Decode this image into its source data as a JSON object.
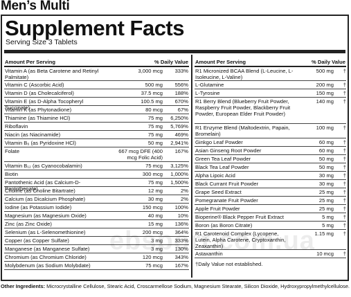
{
  "product_title": "Men’s Multi",
  "panel_title": "Supplement Facts",
  "serving_size": "Serving Size 3 Tablets",
  "header": {
    "amount": "Amount Per Serving",
    "dv": "% Daily Value"
  },
  "left_rows": [
    {
      "name": "Vitamin A (as Beta Carotene and Retinyl Palmitate)",
      "amount": "3,000 mcg",
      "dv": "333%",
      "h": 20
    },
    {
      "name": "Vitamin C (Ascorbic Acid)",
      "amount": "500 mg",
      "dv": "556%",
      "h": 12
    },
    {
      "name": "Vitamin D (as Cholecalciferol)",
      "amount": "37.5 mcg",
      "dv": "188%",
      "h": 12
    },
    {
      "name": "Vitamin E (as D-Alpha Tocopheryl Succinate)",
      "amount": "100.5 mg",
      "dv": "670%",
      "h": 12
    },
    {
      "name": "Vitamin K (as Phytonadione)",
      "amount": "80 mcg",
      "dv": "67%",
      "h": 12
    },
    {
      "name": "Thiamine (as Thiamine HCl)",
      "amount": "75 mg",
      "dv": "6,250%",
      "h": 12
    },
    {
      "name": "Riboflavin",
      "amount": "75 mg",
      "dv": "5,769%",
      "h": 12
    },
    {
      "name": "Niacin (as Niacinamide)",
      "amount": "75 mg",
      "dv": "469%",
      "h": 12
    },
    {
      "name": "Vitamin B₆ (as Pyridoxine HCl)",
      "amount": "50 mg",
      "dv": "2,941%",
      "h": 12
    },
    {
      "name": "Folate",
      "amount": "667 mcg DFE (400 mcg Folic Acid)",
      "dv": "167%",
      "h": 21
    },
    {
      "name": "Vitamin B₁₂ (as Cyanocobalamin)",
      "amount": "75 mcg",
      "dv": "3,125%",
      "h": 12
    },
    {
      "name": "Biotin",
      "amount": "300 mcg",
      "dv": "1,000%",
      "h": 12
    },
    {
      "name": "Pantothenic Acid (as Calcium-D-Pantothenate)",
      "amount": "75 mg",
      "dv": "1,500%",
      "h": 12
    },
    {
      "name": "Choline (as Choline Bitartrate)",
      "amount": "12 mg",
      "dv": "2%",
      "h": 12
    },
    {
      "name": "Calcium (as Dicalcium Phosphate)",
      "amount": "30 mg",
      "dv": "2%",
      "h": 12
    },
    {
      "name": "Iodine (as Potassium Iodide)",
      "amount": "150 mcg",
      "dv": "100%",
      "h": 12
    },
    {
      "name": "Magnesium (as Magnesium Oxide)",
      "amount": "40 mg",
      "dv": "10%",
      "h": 12
    },
    {
      "name": "Zinc (as Zinc Oxide)",
      "amount": "15 mg",
      "dv": "136%",
      "h": 12
    },
    {
      "name": "Selenium (as L-Selenomethionine)",
      "amount": "200 mcg",
      "dv": "364%",
      "h": 12
    },
    {
      "name": "Copper (as Copper Sulfate)",
      "amount": "3 mg",
      "dv": "333%",
      "h": 12
    },
    {
      "name": "Manganese (as Manganese Sulfate)",
      "amount": "3 mg",
      "dv": "130%",
      "h": 12
    },
    {
      "name": "Chromium (as Chromium Chloride)",
      "amount": "120 mcg",
      "dv": "343%",
      "h": 12
    },
    {
      "name": "Molybdenum (as Sodium Molybdate)",
      "amount": "75 mcg",
      "dv": "167%",
      "h": 12
    }
  ],
  "right_rows": [
    {
      "name": "R1 Micronized BCAA Blend (L-Leucine, L-Isoleucine, L-Valine)",
      "amount": "500 mg",
      "dv": "†",
      "h": 20
    },
    {
      "name": "L-Glutamine",
      "amount": "200 mg",
      "dv": "†",
      "h": 12
    },
    {
      "name": "L-Tyrosine",
      "amount": "150 mg",
      "dv": "†",
      "h": 12
    },
    {
      "name": "R1 Berry Blend (Blueberry Fruit Powder, Raspberry Fruit Powder, Blackberry Fruit Powder, European Elder Fruit Powder)",
      "amount": "140 mg",
      "dv": "†",
      "h": 38
    },
    {
      "name": "R1 Enzyme Blend (Maltodextrin, Papain, Bromelain)",
      "amount": "100 mg",
      "dv": "†",
      "h": 21
    },
    {
      "name": "Ginkgo Leaf Powder",
      "amount": "60 mg",
      "dv": "†",
      "h": 12
    },
    {
      "name": "Asian Ginseng Root Powder",
      "amount": "60 mg",
      "dv": "†",
      "h": 12
    },
    {
      "name": "Green Tea Leaf Powder",
      "amount": "50 mg",
      "dv": "†",
      "h": 12
    },
    {
      "name": "Black Tea Leaf Powder",
      "amount": "50 mg",
      "dv": "†",
      "h": 12
    },
    {
      "name": "Alpha Lipoic Acid",
      "amount": "30 mg",
      "dv": "†",
      "h": 12
    },
    {
      "name": "Black Currant Fruit Powder",
      "amount": "30 mg",
      "dv": "†",
      "h": 12
    },
    {
      "name": "Grape Seed Extract",
      "amount": "25 mg",
      "dv": "†",
      "h": 12
    },
    {
      "name": "Pomegranate Fruit Powder",
      "amount": "25 mg",
      "dv": "†",
      "h": 12
    },
    {
      "name": "Apple Fruit Powder",
      "amount": "25 mg",
      "dv": "†",
      "h": 12
    },
    {
      "name": "Bioperine® Black Pepper Fruit Extract",
      "amount": "5 mg",
      "dv": "†",
      "h": 12
    },
    {
      "name": "Boron (as Boron Citrate)",
      "amount": "5 mg",
      "dv": "†",
      "h": 12
    },
    {
      "name": "R1 Carotenoid Complex (Lycopene, Lutein, Alpha Carotene, Cryptoxanthin, Zeaxanthin)",
      "amount": "1.15 mg",
      "dv": "†",
      "h": 29
    },
    {
      "name": "Astaxanthin",
      "amount": "10 mcg",
      "dv": "†",
      "h": 12
    }
  ],
  "footnote": "†Daily Value not established.",
  "other_label": "Other Ingredients:",
  "other_text": " Microcrystalline Cellulose, Stearic Acid, Croscarmellose Sodium, Magnesium Stearate, Silicon Dioxide, Hydroxypropylmethylcellulose.",
  "watermark": "ebsport.com.ua"
}
